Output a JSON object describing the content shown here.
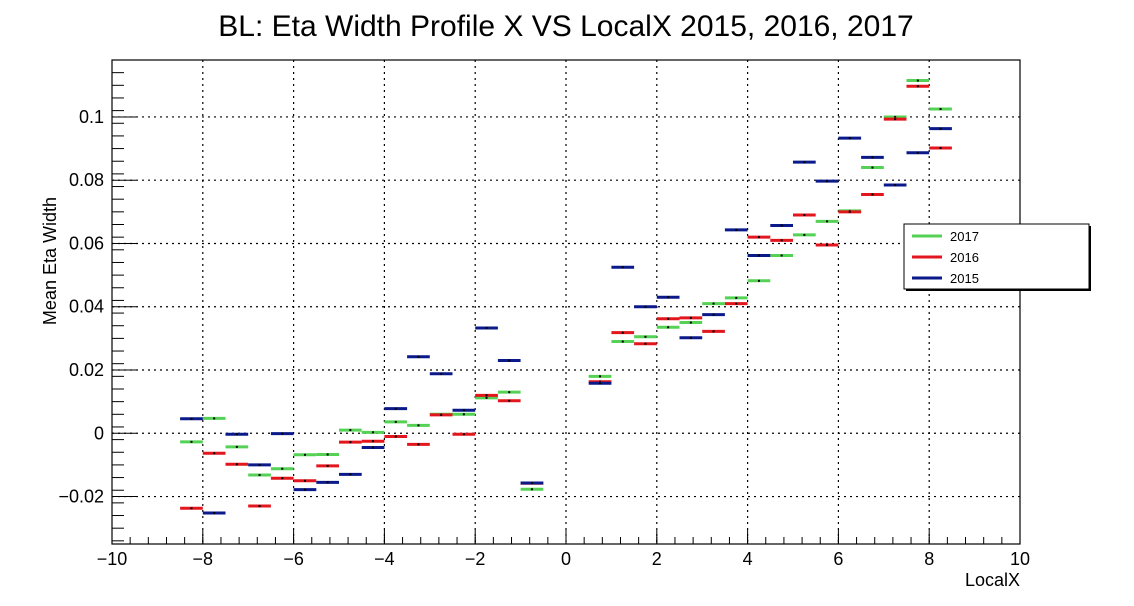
{
  "chart_data": {
    "type": "profile",
    "title": "BL: Eta Width Profile X VS LocalX 2015, 2016, 2017",
    "xlabel": "LocalX",
    "ylabel": "Mean Eta Width",
    "xlim": [
      -10,
      10
    ],
    "ylim": [
      -0.035,
      0.118
    ],
    "x_ticks": [
      -10,
      -8,
      -6,
      -4,
      -2,
      0,
      2,
      4,
      6,
      8,
      10
    ],
    "x_tick_labels": [
      "−10",
      "−8",
      "−6",
      "−4",
      "−2",
      "0",
      "2",
      "4",
      "6",
      "8",
      "10"
    ],
    "y_ticks": [
      -0.02,
      0,
      0.02,
      0.04,
      0.06,
      0.08,
      0.1
    ],
    "y_tick_labels": [
      "−0.02",
      "0",
      "0.02",
      "0.04",
      "0.06",
      "0.08",
      "0.1"
    ],
    "grid": true,
    "legend_position": "right",
    "bin_half_width": 0.25,
    "series": [
      {
        "name": "2017",
        "color": "#55d255",
        "points": [
          [
            -8.25,
            -0.0027
          ],
          [
            -7.75,
            0.0047
          ],
          [
            -7.25,
            -0.0043
          ],
          [
            -6.75,
            -0.0132
          ],
          [
            -6.25,
            -0.0112
          ],
          [
            -5.75,
            -0.0068
          ],
          [
            -5.25,
            -0.0067
          ],
          [
            -4.75,
            0.001
          ],
          [
            -4.25,
            0.0003
          ],
          [
            -3.75,
            0.0036
          ],
          [
            -3.25,
            0.0025
          ],
          [
            -2.75,
            0.006
          ],
          [
            -2.25,
            0.006
          ],
          [
            -1.75,
            0.0112
          ],
          [
            -1.25,
            0.013
          ],
          [
            -0.75,
            -0.0177
          ],
          [
            0.75,
            0.018
          ],
          [
            1.25,
            0.029
          ],
          [
            1.75,
            0.0305
          ],
          [
            2.25,
            0.0335
          ],
          [
            2.75,
            0.035
          ],
          [
            3.25,
            0.041
          ],
          [
            3.75,
            0.0428
          ],
          [
            4.25,
            0.0482
          ],
          [
            4.75,
            0.0562
          ],
          [
            5.25,
            0.0627
          ],
          [
            5.75,
            0.067
          ],
          [
            6.25,
            0.0703
          ],
          [
            6.75,
            0.084
          ],
          [
            7.25,
            0.1
          ],
          [
            7.75,
            0.1115
          ],
          [
            8.25,
            0.1025
          ]
        ]
      },
      {
        "name": "2016",
        "color": "#e2161c",
        "points": [
          [
            -8.25,
            -0.0237
          ],
          [
            -7.75,
            -0.0063
          ],
          [
            -7.25,
            -0.0098
          ],
          [
            -6.75,
            -0.023
          ],
          [
            -6.25,
            -0.0142
          ],
          [
            -5.75,
            -0.015
          ],
          [
            -5.25,
            -0.0103
          ],
          [
            -4.75,
            -0.0028
          ],
          [
            -4.25,
            -0.0025
          ],
          [
            -3.75,
            -0.001
          ],
          [
            -3.25,
            -0.0035
          ],
          [
            -2.75,
            0.0058
          ],
          [
            -2.25,
            -0.0003
          ],
          [
            -1.75,
            0.012
          ],
          [
            -1.25,
            0.0103
          ],
          [
            -0.75,
            -0.0158
          ],
          [
            0.75,
            0.0163
          ],
          [
            1.25,
            0.0318
          ],
          [
            1.75,
            0.0283
          ],
          [
            2.25,
            0.0362
          ],
          [
            2.75,
            0.0365
          ],
          [
            3.25,
            0.0322
          ],
          [
            3.75,
            0.041
          ],
          [
            4.25,
            0.062
          ],
          [
            4.75,
            0.061
          ],
          [
            5.25,
            0.069
          ],
          [
            5.75,
            0.0595
          ],
          [
            6.25,
            0.07
          ],
          [
            6.75,
            0.0755
          ],
          [
            7.25,
            0.0993
          ],
          [
            7.75,
            0.1097
          ],
          [
            8.25,
            0.0902
          ]
        ]
      },
      {
        "name": "2015",
        "color": "#0b1a8a",
        "points": [
          [
            -8.25,
            0.0046
          ],
          [
            -7.75,
            -0.0252
          ],
          [
            -7.25,
            -0.0003
          ],
          [
            -6.75,
            -0.01
          ],
          [
            -6.25,
            -0.0001
          ],
          [
            -5.75,
            -0.0178
          ],
          [
            -5.25,
            -0.0155
          ],
          [
            -4.75,
            -0.013
          ],
          [
            -4.25,
            -0.0045
          ],
          [
            -3.75,
            0.0078
          ],
          [
            -3.25,
            0.0242
          ],
          [
            -2.75,
            0.0188
          ],
          [
            -2.25,
            0.0073
          ],
          [
            -1.75,
            0.0333
          ],
          [
            -1.25,
            0.023
          ],
          [
            -0.75,
            -0.0157
          ],
          [
            0.75,
            0.0158
          ],
          [
            1.25,
            0.0525
          ],
          [
            1.75,
            0.04
          ],
          [
            2.25,
            0.043
          ],
          [
            2.75,
            0.0302
          ],
          [
            3.25,
            0.0375
          ],
          [
            3.75,
            0.0643
          ],
          [
            4.25,
            0.0562
          ],
          [
            4.75,
            0.0657
          ],
          [
            5.25,
            0.0857
          ],
          [
            5.75,
            0.0797
          ],
          [
            6.25,
            0.0933
          ],
          [
            6.75,
            0.0872
          ],
          [
            7.25,
            0.0785
          ],
          [
            7.75,
            0.0887
          ],
          [
            8.25,
            0.0963
          ]
        ]
      }
    ],
    "legend": [
      {
        "label": "2017",
        "color": "#55d255"
      },
      {
        "label": "2016",
        "color": "#e2161c"
      },
      {
        "label": "2015",
        "color": "#0b1a8a"
      }
    ]
  }
}
